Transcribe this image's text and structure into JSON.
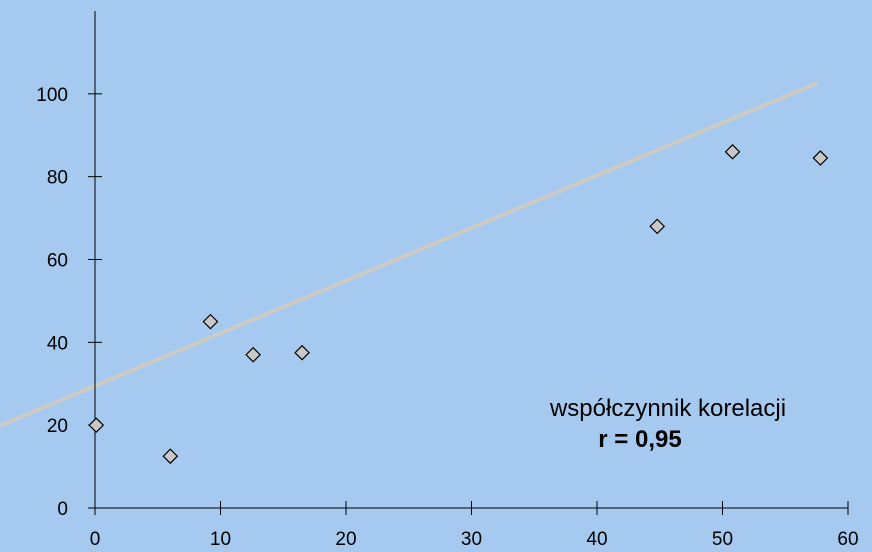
{
  "colors": {
    "background": "#a6c9ef",
    "axis": "#000000",
    "trendline": "#cdcbc6",
    "marker_fill": "#c8c8c8",
    "marker_stroke": "#000000"
  },
  "chart_data": {
    "type": "scatter",
    "title": "",
    "xlabel": "",
    "ylabel": "",
    "xlim": [
      0,
      60
    ],
    "ylim": [
      0,
      120
    ],
    "x_ticks": [
      0,
      10,
      20,
      30,
      40,
      50,
      60
    ],
    "y_ticks": [
      0,
      20,
      40,
      60,
      80,
      100
    ],
    "grid": false,
    "marker": "diamond",
    "points": [
      {
        "x": 0.1,
        "y": 20
      },
      {
        "x": 6,
        "y": 12.5
      },
      {
        "x": 9.2,
        "y": 45
      },
      {
        "x": 12.6,
        "y": 37
      },
      {
        "x": 16.5,
        "y": 37.5
      },
      {
        "x": 44.8,
        "y": 68
      },
      {
        "x": 50.8,
        "y": 86
      },
      {
        "x": 57.8,
        "y": 84.5
      }
    ],
    "trendline": {
      "intercept": 29.5,
      "slope": 1.27,
      "x_start": -7.6,
      "x_end": 57.6
    },
    "annotation": {
      "line1": "współczynnik korelacji",
      "line2": "r = 0,95"
    }
  }
}
